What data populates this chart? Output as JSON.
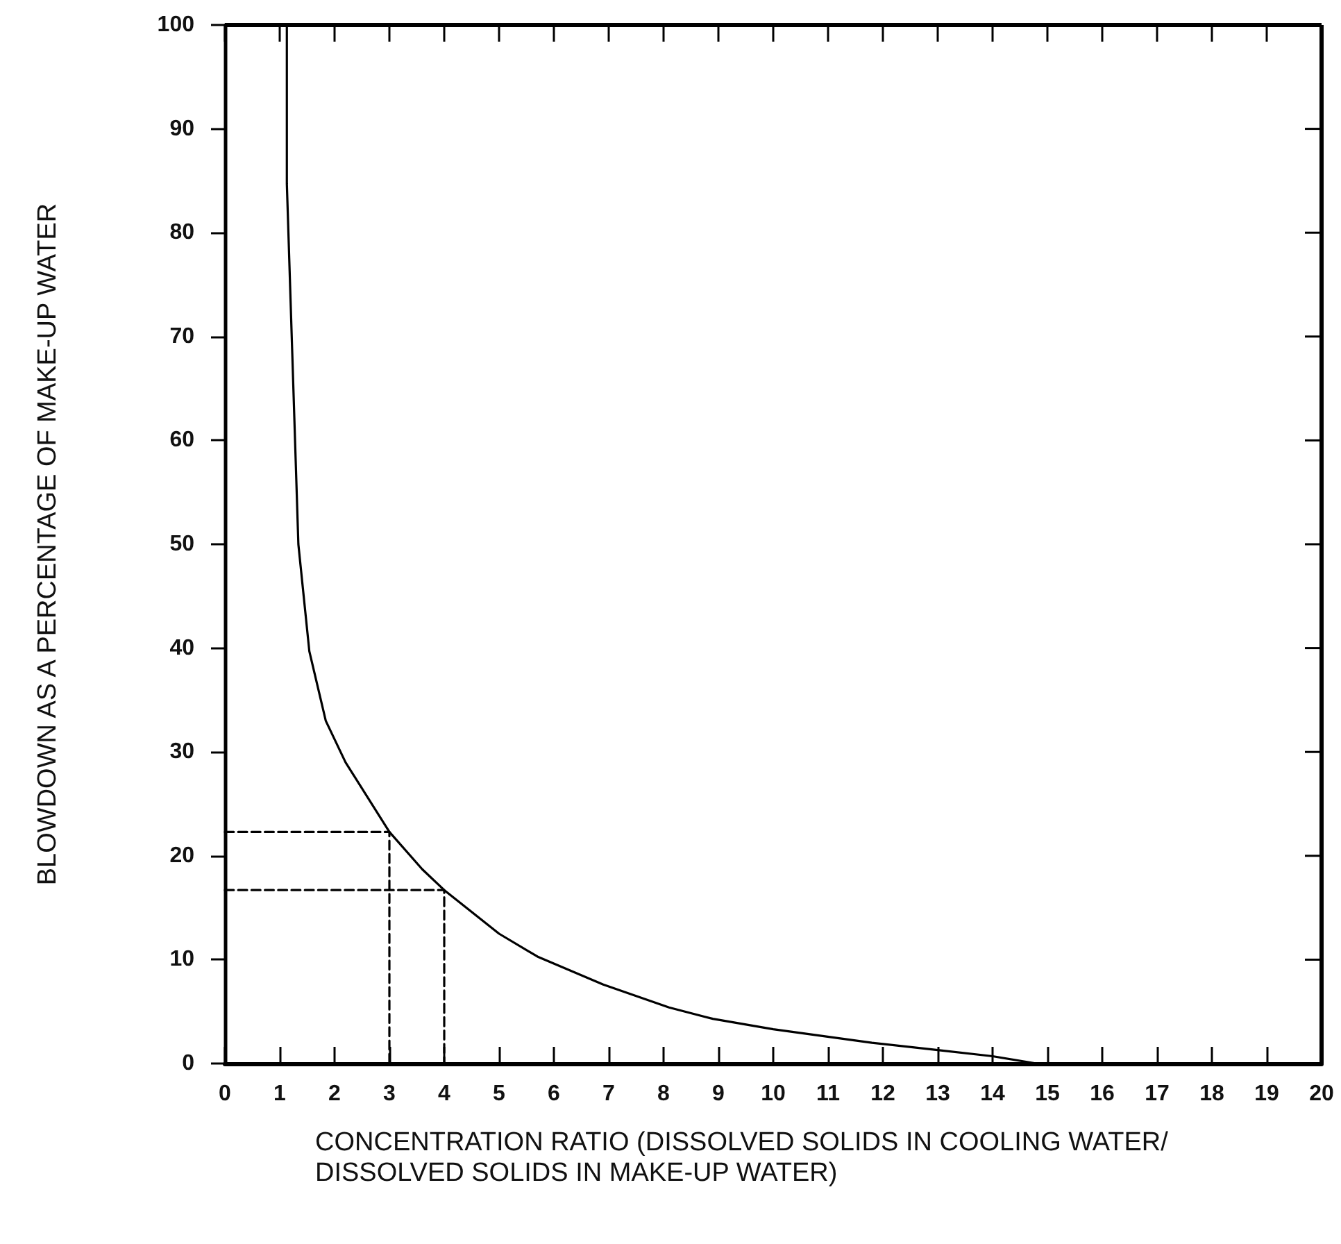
{
  "chart_data": {
    "type": "line",
    "xlabel": "CONCENTRATION RATIO (DISSOLVED SOLIDS IN COOLING WATER/ DISSOLVED SOLIDS IN MAKE-UP WATER)",
    "ylabel": "BLOWDOWN AS A PERCENTAGE OF MAKE-UP WATER",
    "series": [
      {
        "color": "#000000",
        "line_style": "solid",
        "x": [
          1.13,
          1.13,
          1.34,
          1.54,
          1.84,
          2.2,
          3,
          3.6,
          4,
          5,
          5.7,
          6.9,
          8.1,
          8.9,
          10,
          11.8,
          13,
          14,
          14.8
        ],
        "values": [
          100,
          84.7,
          50,
          39.7,
          33,
          29,
          22.3,
          18.7,
          16.7,
          12.5,
          10.3,
          7.6,
          5.4,
          4.3,
          3.3,
          2,
          1.3,
          0.7,
          0
        ]
      },
      {
        "color": "#000000",
        "line_style": "dashed",
        "x": [
          0,
          3,
          3
        ],
        "values": [
          22.3,
          22.3,
          0
        ]
      },
      {
        "color": "#000000",
        "line_style": "dashed",
        "x": [
          0,
          4,
          4
        ],
        "values": [
          16.7,
          16.7,
          0
        ]
      }
    ],
    "xlim": [
      0,
      20
    ],
    "xticks": [
      0,
      1,
      2,
      3,
      4,
      5,
      6,
      7,
      8,
      9,
      10,
      11,
      12,
      13,
      14,
      15,
      16,
      17,
      18,
      19,
      20
    ],
    "ylim": [
      0,
      100
    ],
    "yticks": [
      0,
      10,
      20,
      30,
      40,
      50,
      60,
      70,
      80,
      90,
      100
    ],
    "grid": false,
    "marker": "none"
  }
}
